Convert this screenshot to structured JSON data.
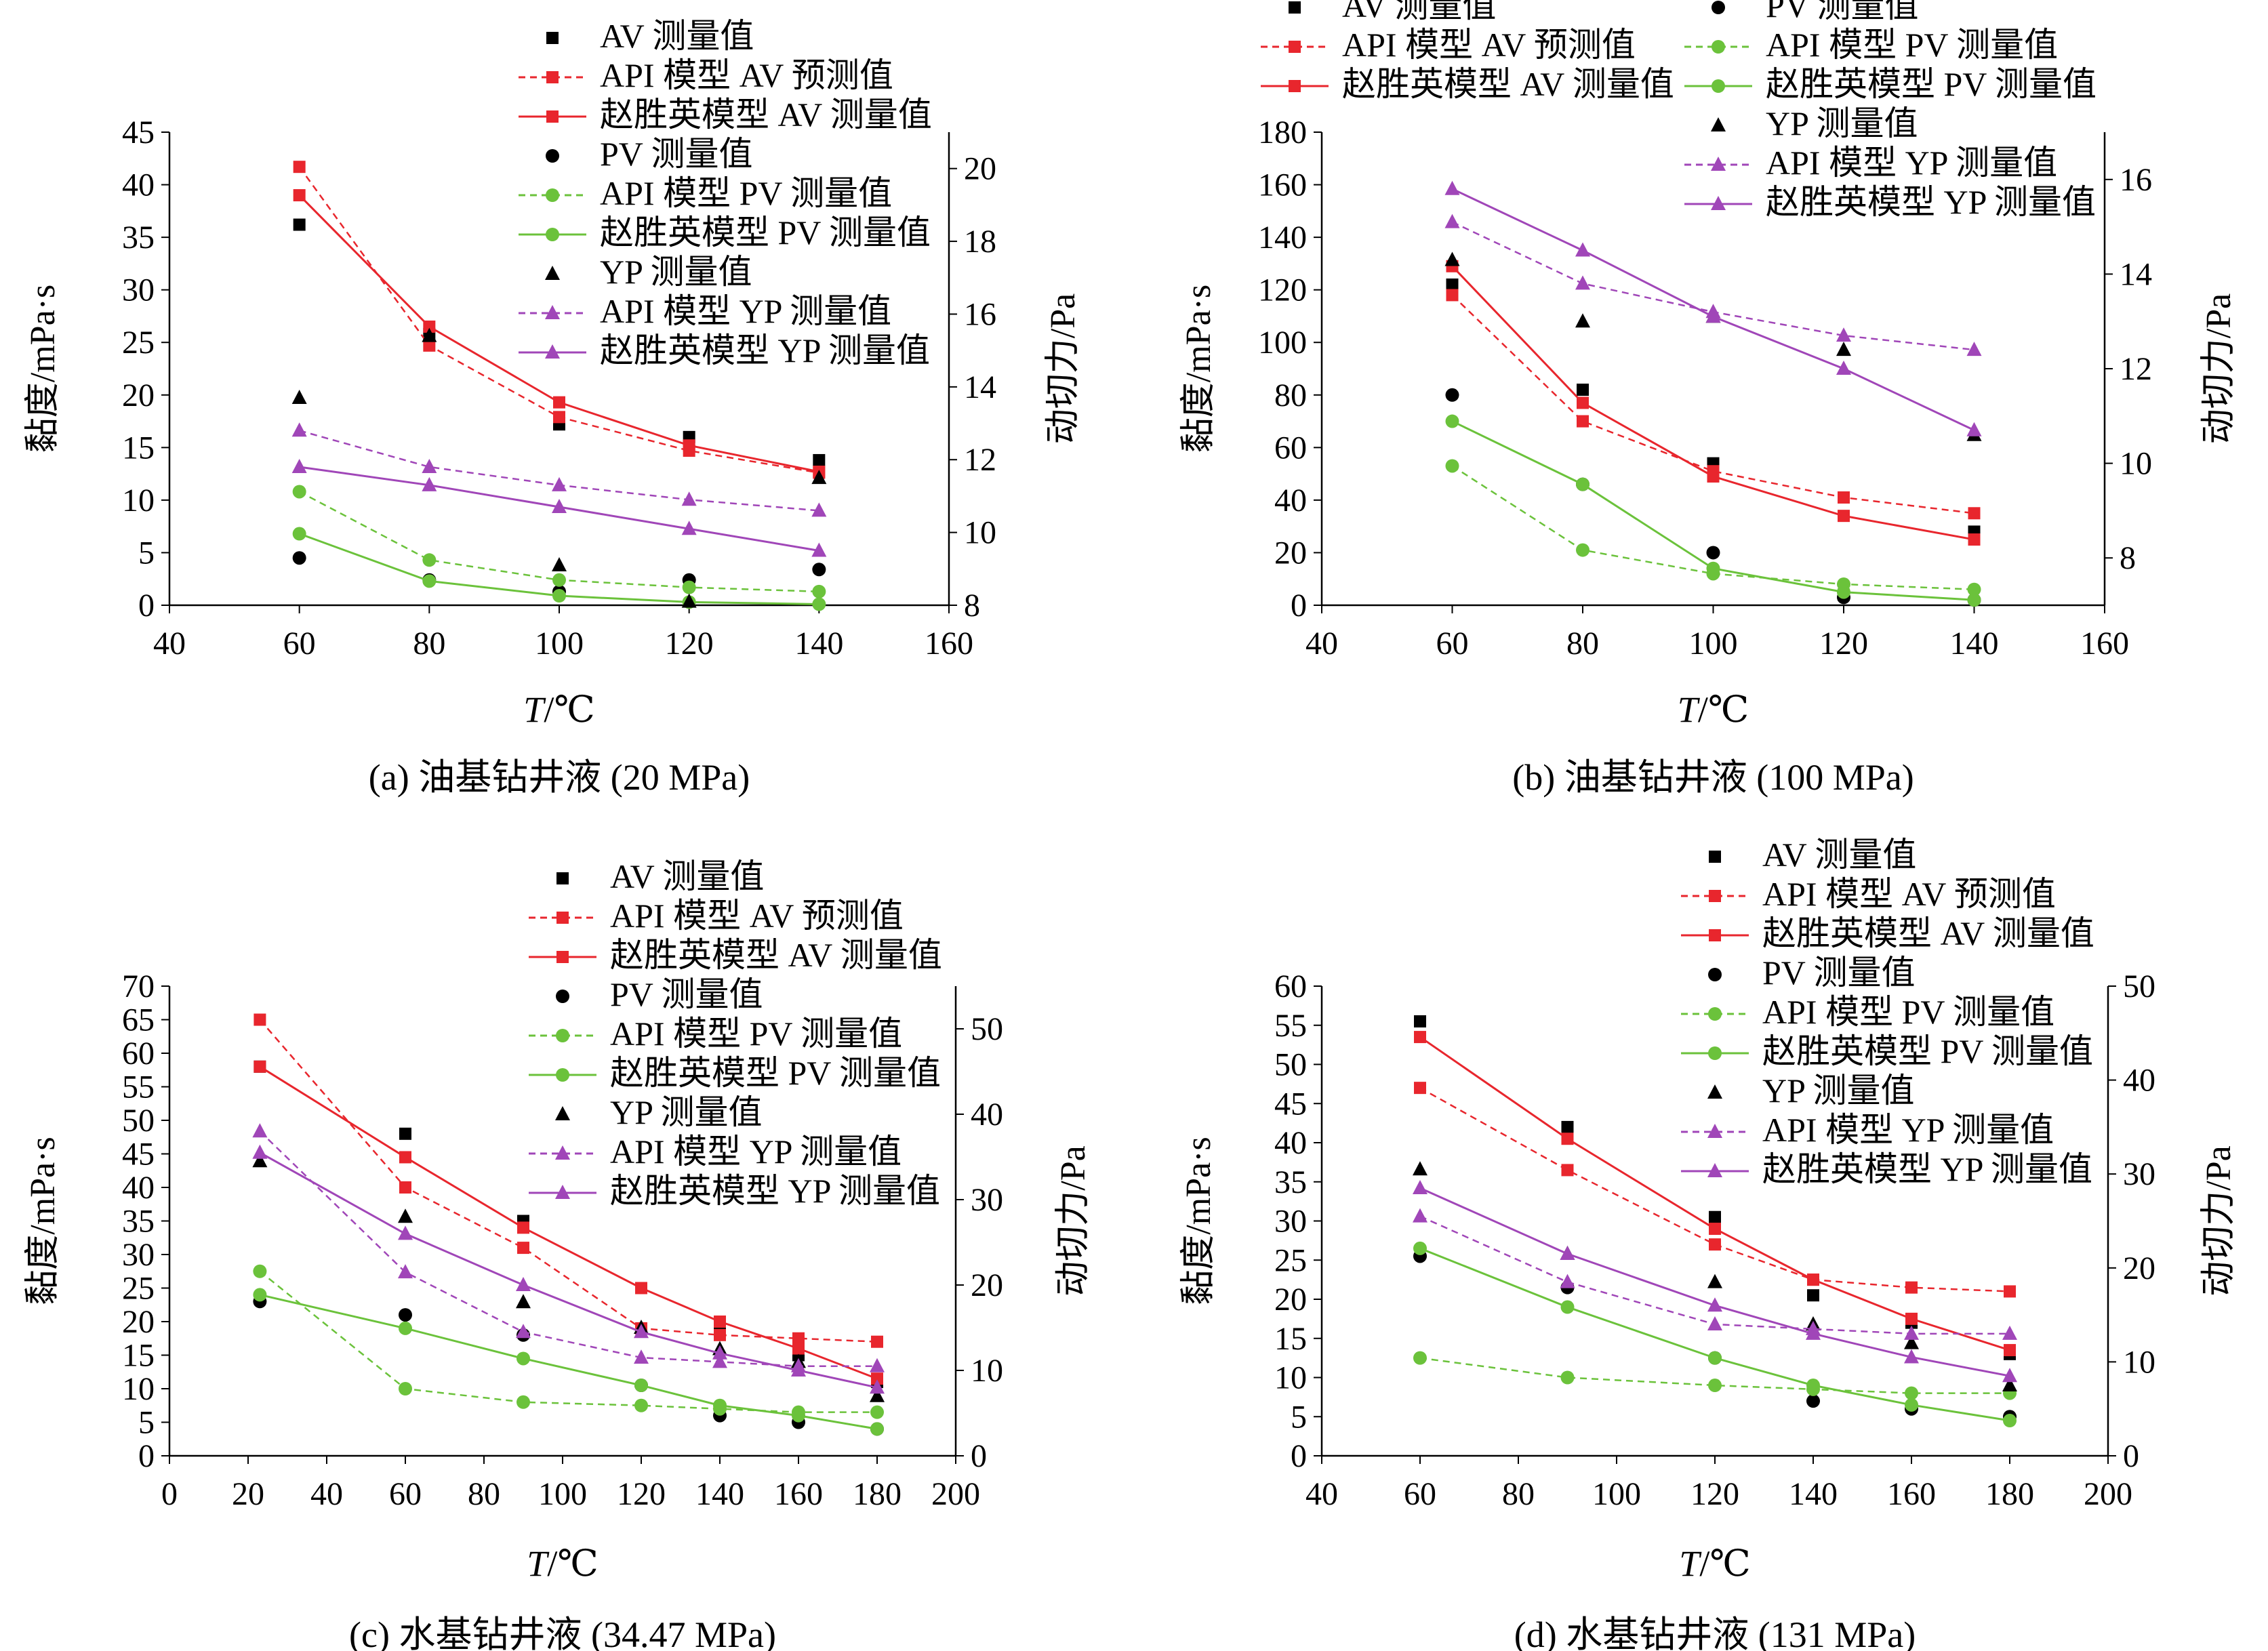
{
  "figure": {
    "x_label_var": "T",
    "x_label_unit": "/℃",
    "ylabel_left": "黏度/mPa·s",
    "ylabel_right": "动切力/Pa"
  },
  "legend_labels": {
    "av_meas": "AV 测量值",
    "av_api": "API 模型 AV 预测值",
    "av_zhao": "赵胜英模型 AV 测量值",
    "pv_meas": "PV 测量值",
    "pv_api": "API 模型 PV 测量值",
    "pv_zhao": "赵胜英模型 PV 测量值",
    "yp_meas": "YP 测量值",
    "yp_api": "API 模型 YP 测量值",
    "yp_zhao": "赵胜英模型 YP 测量值"
  },
  "colors": {
    "av": "#e8262d",
    "pv": "#6bc23b",
    "yp": "#a046b8",
    "meas": "#000000"
  },
  "chart_data": [
    {
      "type": "line",
      "caption": "(a) 油基钻井液 (20 MPa)",
      "xlim": [
        40,
        160
      ],
      "xticks": [
        40,
        60,
        80,
        100,
        120,
        140,
        160
      ],
      "ylim": [
        0,
        45
      ],
      "yticks": [
        0,
        5,
        10,
        15,
        20,
        25,
        30,
        35,
        40,
        45
      ],
      "y2lim": [
        8,
        21
      ],
      "y2ticks": [
        8,
        10,
        12,
        14,
        16,
        18,
        20
      ],
      "x": [
        60,
        80,
        100,
        120,
        140
      ],
      "series": [
        {
          "name": "AV 测量值",
          "axis": "left",
          "style": "meas",
          "marker": "square",
          "values": [
            36.2,
            25.8,
            17.2,
            16.0,
            13.8
          ]
        },
        {
          "name": "API 模型 AV 预测值",
          "axis": "left",
          "style": "dashed",
          "marker": "square",
          "color": "av",
          "values": [
            41.7,
            24.7,
            17.9,
            14.7,
            12.6
          ]
        },
        {
          "name": "赵胜英模型 AV 测量值",
          "axis": "left",
          "style": "solid",
          "marker": "square",
          "color": "av",
          "values": [
            39.0,
            26.5,
            19.3,
            15.2,
            12.7
          ]
        },
        {
          "name": "PV 测量值",
          "axis": "left",
          "style": "meas",
          "marker": "circle",
          "values": [
            4.5,
            2.4,
            1.3,
            2.4,
            3.4
          ]
        },
        {
          "name": "API 模型 PV 测量值",
          "axis": "left",
          "style": "dashed",
          "marker": "circle",
          "color": "pv",
          "values": [
            10.8,
            4.3,
            2.4,
            1.7,
            1.3
          ]
        },
        {
          "name": "赵胜英模型 PV 测量值",
          "axis": "left",
          "style": "solid",
          "marker": "circle",
          "color": "pv",
          "values": [
            6.8,
            2.3,
            0.9,
            0.3,
            0.1
          ]
        },
        {
          "name": "YP 测量值",
          "axis": "right",
          "style": "meas",
          "marker": "triangle",
          "values": [
            13.7,
            15.4,
            9.1,
            8.1,
            11.5
          ]
        },
        {
          "name": "API 模型 YP 测量值",
          "axis": "right",
          "style": "dashed",
          "marker": "triangle",
          "color": "yp",
          "values": [
            12.8,
            11.8,
            11.3,
            10.9,
            10.6
          ]
        },
        {
          "name": "赵胜英模型 YP 测量值",
          "axis": "right",
          "style": "solid",
          "marker": "triangle",
          "color": "yp",
          "values": [
            11.8,
            11.3,
            10.7,
            10.1,
            9.5
          ]
        }
      ]
    },
    {
      "type": "line",
      "caption": "(b) 油基钻井液 (100 MPa)",
      "xlim": [
        40,
        160
      ],
      "xticks": [
        40,
        60,
        80,
        100,
        120,
        140,
        160
      ],
      "ylim": [
        0,
        180
      ],
      "yticks": [
        0,
        20,
        40,
        60,
        80,
        100,
        120,
        140,
        160,
        180
      ],
      "y2lim": [
        7,
        17
      ],
      "y2ticks": [
        8,
        10,
        12,
        14,
        16
      ],
      "x": [
        60,
        80,
        100,
        120,
        140
      ],
      "series": [
        {
          "name": "AV 测量值",
          "axis": "left",
          "style": "meas",
          "marker": "square",
          "values": [
            122,
            82,
            54,
            4,
            28
          ]
        },
        {
          "name": "API 模型 AV 预测值",
          "axis": "left",
          "style": "dashed",
          "marker": "square",
          "color": "av",
          "values": [
            118,
            70,
            51,
            41,
            35
          ]
        },
        {
          "name": "赵胜英模型 AV 测量值",
          "axis": "left",
          "style": "solid",
          "marker": "square",
          "color": "av",
          "values": [
            129,
            77,
            49,
            34,
            25
          ]
        },
        {
          "name": "PV 测量值",
          "axis": "left",
          "style": "meas",
          "marker": "circle",
          "values": [
            80,
            46,
            20,
            3,
            2
          ]
        },
        {
          "name": "API 模型 PV 测量值",
          "axis": "left",
          "style": "dashed",
          "marker": "circle",
          "color": "pv",
          "values": [
            53,
            21,
            12,
            8,
            6
          ]
        },
        {
          "name": "赵胜英模型 PV 测量值",
          "axis": "left",
          "style": "solid",
          "marker": "circle",
          "color": "pv",
          "values": [
            70,
            46,
            14,
            5,
            2
          ]
        },
        {
          "name": "YP 测量值",
          "axis": "right",
          "style": "meas",
          "marker": "triangle",
          "values": [
            14.3,
            13.0,
            13.1,
            12.4,
            10.6
          ]
        },
        {
          "name": "API 模型 YP 测量值",
          "axis": "right",
          "style": "dashed",
          "marker": "triangle",
          "color": "yp",
          "values": [
            15.1,
            13.8,
            13.2,
            12.7,
            12.4
          ]
        },
        {
          "name": "赵胜英模型 YP 测量值",
          "axis": "right",
          "style": "solid",
          "marker": "triangle",
          "color": "yp",
          "values": [
            15.8,
            14.5,
            13.1,
            12.0,
            10.7
          ]
        }
      ]
    },
    {
      "type": "line",
      "caption": "(c) 水基钻井液 (34.47 MPa)",
      "xlim": [
        0,
        200
      ],
      "xticks": [
        0,
        20,
        40,
        60,
        80,
        100,
        120,
        140,
        160,
        180,
        200
      ],
      "ylim": [
        0,
        70
      ],
      "yticks": [
        0,
        5,
        10,
        15,
        20,
        25,
        30,
        35,
        40,
        45,
        50,
        55,
        60,
        65,
        70
      ],
      "y2lim": [
        0,
        55
      ],
      "y2ticks": [
        0,
        10,
        20,
        30,
        40,
        50
      ],
      "x": [
        23,
        60,
        90,
        120,
        140,
        160,
        180
      ],
      "series": [
        {
          "name": "AV 测量值",
          "axis": "left",
          "style": "meas",
          "marker": "square",
          "values": [
            58,
            48,
            35,
            25,
            19,
            15,
            11
          ]
        },
        {
          "name": "API 模型 AV 预测值",
          "axis": "left",
          "style": "dashed",
          "marker": "square",
          "color": "av",
          "values": [
            65,
            40,
            31,
            19,
            18,
            17.5,
            17
          ]
        },
        {
          "name": "赵胜英模型 AV 测量值",
          "axis": "left",
          "style": "solid",
          "marker": "square",
          "color": "av",
          "values": [
            58,
            44.5,
            34,
            25,
            20,
            16,
            11.5
          ]
        },
        {
          "name": "PV 测量值",
          "axis": "left",
          "style": "meas",
          "marker": "circle",
          "values": [
            23,
            21,
            18,
            10.5,
            6,
            5,
            4
          ]
        },
        {
          "name": "API 模型 PV 测量值",
          "axis": "left",
          "style": "dashed",
          "marker": "circle",
          "color": "pv",
          "values": [
            27.5,
            10,
            8,
            7.5,
            7,
            6.5,
            6.5
          ]
        },
        {
          "name": "赵胜英模型 PV 测量值",
          "axis": "left",
          "style": "solid",
          "marker": "circle",
          "color": "pv",
          "values": [
            24,
            19,
            14.5,
            10.5,
            7.5,
            6,
            4
          ]
        },
        {
          "name": "YP 测量值",
          "axis": "right",
          "style": "meas",
          "marker": "triangle",
          "values": [
            34.5,
            28,
            18,
            15,
            12.5,
            11,
            7
          ]
        },
        {
          "name": "API 模型 YP 测量值",
          "axis": "right",
          "style": "dashed",
          "marker": "triangle",
          "color": "yp",
          "values": [
            38,
            21.5,
            14.5,
            11.5,
            11,
            10.5,
            10.5
          ]
        },
        {
          "name": "赵胜英模型 YP 测量值",
          "axis": "right",
          "style": "solid",
          "marker": "triangle",
          "color": "yp",
          "values": [
            35.5,
            26,
            20,
            14.5,
            12,
            10,
            8
          ]
        }
      ]
    },
    {
      "type": "line",
      "caption": "(d) 水基钻井液 (131 MPa)",
      "xlim": [
        40,
        200
      ],
      "xticks": [
        40,
        60,
        80,
        100,
        120,
        140,
        160,
        180,
        200
      ],
      "ylim": [
        0,
        60
      ],
      "yticks": [
        0,
        5,
        10,
        15,
        20,
        25,
        30,
        35,
        40,
        45,
        50,
        55,
        60
      ],
      "y2lim": [
        0,
        50
      ],
      "y2ticks": [
        0,
        10,
        20,
        30,
        40,
        50
      ],
      "x": [
        60,
        90,
        120,
        140,
        160,
        180
      ],
      "series": [
        {
          "name": "AV 测量值",
          "axis": "left",
          "style": "meas",
          "marker": "square",
          "values": [
            55.5,
            42,
            30.5,
            20.5,
            17,
            13
          ]
        },
        {
          "name": "API 模型 AV 预测值",
          "axis": "left",
          "style": "dashed",
          "marker": "square",
          "color": "av",
          "values": [
            47,
            36.5,
            27,
            22.5,
            21.5,
            21
          ]
        },
        {
          "name": "赵胜英模型 AV 测量值",
          "axis": "left",
          "style": "solid",
          "marker": "square",
          "color": "av",
          "values": [
            53.5,
            40.5,
            29,
            22.5,
            17.5,
            13.5
          ]
        },
        {
          "name": "PV 测量值",
          "axis": "left",
          "style": "meas",
          "marker": "circle",
          "values": [
            25.5,
            21.5,
            12.5,
            7,
            6,
            5
          ]
        },
        {
          "name": "API 模型 PV 测量值",
          "axis": "left",
          "style": "dashed",
          "marker": "circle",
          "color": "pv",
          "values": [
            12.5,
            10,
            9,
            8.5,
            8,
            8
          ]
        },
        {
          "name": "赵胜英模型 PV 测量值",
          "axis": "left",
          "style": "solid",
          "marker": "circle",
          "color": "pv",
          "values": [
            26.5,
            19,
            12.5,
            9,
            6.5,
            4.5
          ]
        },
        {
          "name": "YP 测量值",
          "axis": "right",
          "style": "meas",
          "marker": "triangle",
          "values": [
            30.5,
            21.5,
            18.5,
            14,
            12,
            7.5
          ]
        },
        {
          "name": "API 模型 YP 测量值",
          "axis": "right",
          "style": "dashed",
          "marker": "triangle",
          "color": "yp",
          "values": [
            25.5,
            18.5,
            14,
            13.5,
            13,
            13
          ]
        },
        {
          "name": "赵胜英模型 YP 测量值",
          "axis": "right",
          "style": "solid",
          "marker": "triangle",
          "color": "yp",
          "values": [
            28.5,
            21.5,
            16,
            13,
            10.5,
            8.5
          ]
        }
      ]
    }
  ]
}
